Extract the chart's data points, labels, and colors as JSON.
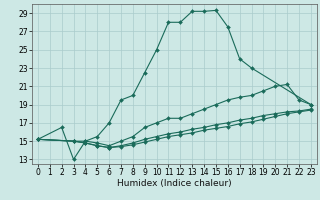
{
  "lines": [
    {
      "x": [
        0,
        2,
        3,
        4,
        5,
        6,
        7,
        8,
        9,
        10,
        11,
        12,
        13,
        14,
        15,
        16,
        17,
        18,
        23
      ],
      "y": [
        15.2,
        16.5,
        13.0,
        15.0,
        15.5,
        17.0,
        19.5,
        20.0,
        22.5,
        25.0,
        28.0,
        28.0,
        29.2,
        29.2,
        29.3,
        27.5,
        24.0,
        23.0,
        19.0
      ],
      "color": "#1a6b5a",
      "marker": "D",
      "markersize": 2.0,
      "linewidth": 0.8
    },
    {
      "x": [
        0,
        3,
        4,
        5,
        6,
        7,
        8,
        9,
        10,
        11,
        12,
        13,
        14,
        15,
        16,
        17,
        18,
        19,
        20,
        21,
        22,
        23
      ],
      "y": [
        15.2,
        15.0,
        15.0,
        14.8,
        14.5,
        15.0,
        15.5,
        16.5,
        17.0,
        17.5,
        17.5,
        18.0,
        18.5,
        19.0,
        19.5,
        19.8,
        20.0,
        20.5,
        21.0,
        21.2,
        19.5,
        19.0
      ],
      "color": "#1a6b5a",
      "marker": "D",
      "markersize": 2.0,
      "linewidth": 0.8
    },
    {
      "x": [
        0,
        3,
        4,
        5,
        6,
        7,
        8,
        9,
        10,
        11,
        12,
        13,
        14,
        15,
        16,
        17,
        18,
        19,
        20,
        21,
        22,
        23
      ],
      "y": [
        15.2,
        15.0,
        14.8,
        14.5,
        14.3,
        14.5,
        14.8,
        15.2,
        15.5,
        15.8,
        16.0,
        16.3,
        16.5,
        16.8,
        17.0,
        17.3,
        17.5,
        17.8,
        18.0,
        18.2,
        18.3,
        18.5
      ],
      "color": "#1a6b5a",
      "marker": "D",
      "markersize": 2.0,
      "linewidth": 0.8
    },
    {
      "x": [
        0,
        3,
        4,
        5,
        6,
        7,
        8,
        9,
        10,
        11,
        12,
        13,
        14,
        15,
        16,
        17,
        18,
        19,
        20,
        21,
        22,
        23
      ],
      "y": [
        15.2,
        15.0,
        14.8,
        14.5,
        14.3,
        14.4,
        14.6,
        14.9,
        15.2,
        15.5,
        15.7,
        15.9,
        16.2,
        16.4,
        16.6,
        16.9,
        17.1,
        17.4,
        17.7,
        18.0,
        18.2,
        18.4
      ],
      "color": "#1a6b5a",
      "marker": "D",
      "markersize": 2.0,
      "linewidth": 0.8
    }
  ],
  "xlabel": "Humidex (Indice chaleur)",
  "xlim": [
    -0.5,
    23.5
  ],
  "ylim": [
    12.5,
    30.0
  ],
  "yticks": [
    13,
    15,
    17,
    19,
    21,
    23,
    25,
    27,
    29
  ],
  "xticks": [
    0,
    1,
    2,
    3,
    4,
    5,
    6,
    7,
    8,
    9,
    10,
    11,
    12,
    13,
    14,
    15,
    16,
    17,
    18,
    19,
    20,
    21,
    22,
    23
  ],
  "bg_color": "#cde8e5",
  "grid_color": "#aacccc",
  "line_color": "#1a6b5a",
  "xlabel_fontsize": 6.5,
  "tick_fontsize": 5.5
}
